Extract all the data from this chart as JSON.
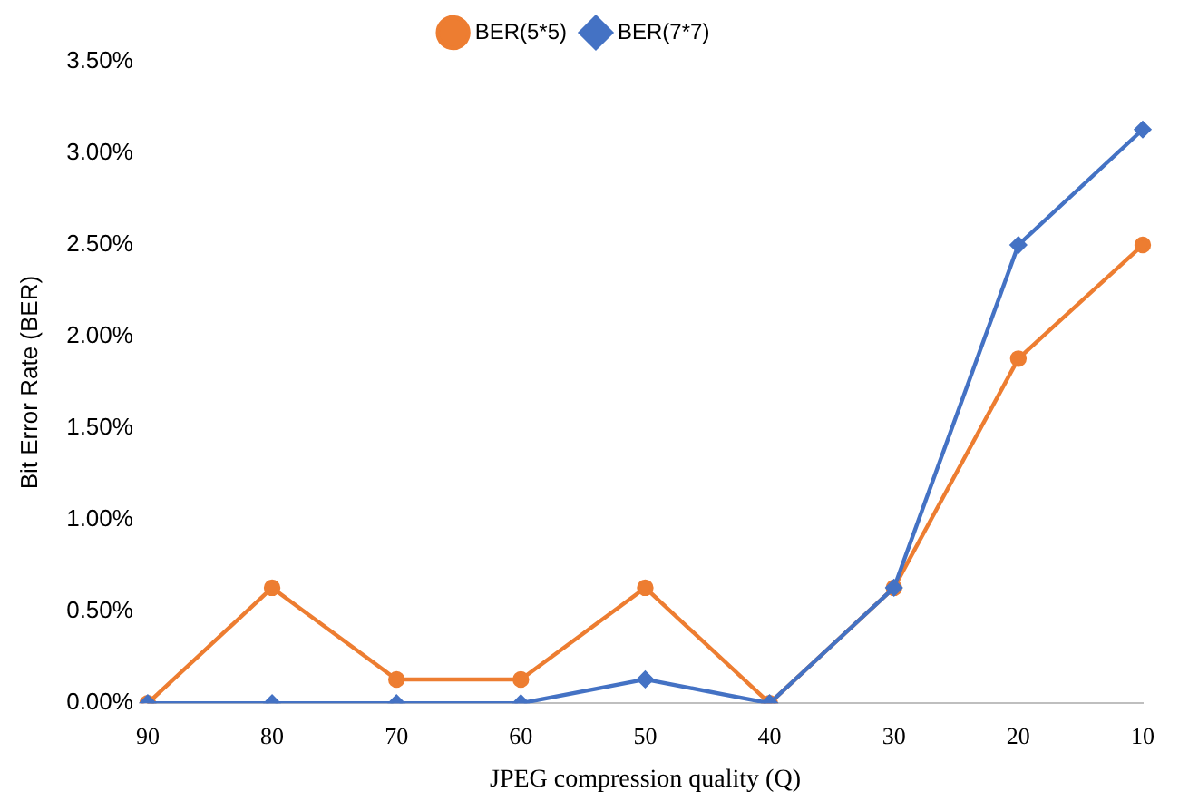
{
  "chart_data": {
    "type": "line",
    "xlabel": "JPEG compression quality (Q)",
    "ylabel": "Bit Error Rate (BER)",
    "categories": [
      "90",
      "80",
      "70",
      "60",
      "50",
      "40",
      "30",
      "20",
      "10"
    ],
    "series": [
      {
        "name": "BER(5*5)",
        "color": "#ed7d31",
        "marker": "circle",
        "values": [
          0,
          0.63,
          0.13,
          0.13,
          0.63,
          0,
          0.63,
          1.88,
          2.5
        ]
      },
      {
        "name": "BER(7*7)",
        "color": "#4472c4",
        "marker": "diamond",
        "values": [
          0,
          0,
          0,
          0,
          0.13,
          0,
          0.63,
          2.5,
          3.13
        ]
      }
    ],
    "ylim": [
      0,
      3.5
    ],
    "yticks": [
      {
        "value": 0,
        "label": "0.00%"
      },
      {
        "value": 0.5,
        "label": "0.50%"
      },
      {
        "value": 1,
        "label": "1.00%"
      },
      {
        "value": 1.5,
        "label": "1.50%"
      },
      {
        "value": 2,
        "label": "2.00%"
      },
      {
        "value": 2.5,
        "label": "2.50%"
      },
      {
        "value": 3,
        "label": "3.00%"
      },
      {
        "value": 3.5,
        "label": "3.50%"
      }
    ],
    "grid": false,
    "legend": "top",
    "line_style": "solid"
  }
}
